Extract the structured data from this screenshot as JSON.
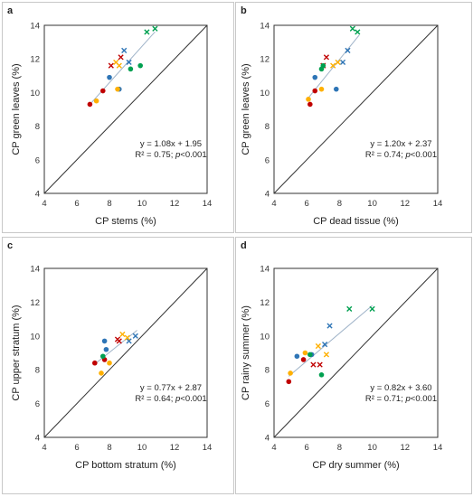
{
  "colors": {
    "red": "#c00000",
    "blue": "#2e75b6",
    "gold": "#ffb000",
    "green": "#00a050"
  },
  "chart_data": [
    {
      "type": "scatter",
      "panel": "a",
      "xlabel": "CP stems (%)",
      "ylabel": "CP green leaves (%)",
      "xlim": [
        4,
        14
      ],
      "ylim": [
        4,
        14
      ],
      "xticks": [
        "4",
        "6",
        "8",
        "10",
        "12",
        "14"
      ],
      "yticks": [
        "4",
        "6",
        "8",
        "10",
        "12",
        "14"
      ],
      "equation": "y = 1.08x + 1.95",
      "r2_text": "R² = 0.75; ",
      "p_label": "p",
      "p_text": "<0.001",
      "trendline": {
        "slope": 1.08,
        "intercept": 1.95,
        "x": [
          6.8,
          10.8
        ]
      },
      "series": [
        {
          "color": "red",
          "points": [
            {
              "x": 6.8,
              "y": 9.3,
              "m": "o"
            },
            {
              "x": 7.6,
              "y": 10.1,
              "m": "o"
            },
            {
              "x": 8.1,
              "y": 11.6,
              "m": "x"
            },
            {
              "x": 8.7,
              "y": 12.1,
              "m": "x"
            }
          ]
        },
        {
          "color": "blue",
          "points": [
            {
              "x": 8.0,
              "y": 10.9,
              "m": "o"
            },
            {
              "x": 8.6,
              "y": 10.2,
              "m": "o"
            },
            {
              "x": 8.9,
              "y": 12.5,
              "m": "x"
            },
            {
              "x": 9.2,
              "y": 11.8,
              "m": "x"
            }
          ]
        },
        {
          "color": "gold",
          "points": [
            {
              "x": 7.2,
              "y": 9.5,
              "m": "o"
            },
            {
              "x": 8.5,
              "y": 10.2,
              "m": "o"
            },
            {
              "x": 8.4,
              "y": 11.8,
              "m": "x"
            },
            {
              "x": 8.6,
              "y": 11.6,
              "m": "x"
            }
          ]
        },
        {
          "color": "green",
          "points": [
            {
              "x": 9.3,
              "y": 11.4,
              "m": "o"
            },
            {
              "x": 9.9,
              "y": 11.6,
              "m": "o"
            },
            {
              "x": 10.3,
              "y": 13.6,
              "m": "x"
            },
            {
              "x": 10.8,
              "y": 13.8,
              "m": "x"
            }
          ]
        }
      ]
    },
    {
      "type": "scatter",
      "panel": "b",
      "xlabel": "CP dead tissue (%)",
      "ylabel": "CP green leaves (%)",
      "xlim": [
        4,
        14
      ],
      "ylim": [
        4,
        14
      ],
      "xticks": [
        "4",
        "6",
        "8",
        "10",
        "12",
        "14"
      ],
      "yticks": [
        "4",
        "6",
        "8",
        "10",
        "12",
        "14"
      ],
      "equation": "y = 1.20x + 2.37",
      "r2_text": "R² = 0.74; ",
      "p_label": "p",
      "p_text": "<0.001",
      "trendline": {
        "slope": 1.2,
        "intercept": 2.37,
        "x": [
          6.0,
          9.2
        ]
      },
      "series": [
        {
          "color": "red",
          "points": [
            {
              "x": 6.2,
              "y": 9.3,
              "m": "o"
            },
            {
              "x": 6.5,
              "y": 10.1,
              "m": "o"
            },
            {
              "x": 7.2,
              "y": 12.1,
              "m": "x"
            },
            {
              "x": 7.0,
              "y": 11.6,
              "m": "x"
            }
          ]
        },
        {
          "color": "blue",
          "points": [
            {
              "x": 6.5,
              "y": 10.9,
              "m": "o"
            },
            {
              "x": 7.8,
              "y": 10.2,
              "m": "o"
            },
            {
              "x": 8.5,
              "y": 12.5,
              "m": "x"
            },
            {
              "x": 8.2,
              "y": 11.8,
              "m": "x"
            }
          ]
        },
        {
          "color": "gold",
          "points": [
            {
              "x": 6.1,
              "y": 9.6,
              "m": "o"
            },
            {
              "x": 6.9,
              "y": 10.2,
              "m": "o"
            },
            {
              "x": 7.6,
              "y": 11.6,
              "m": "x"
            },
            {
              "x": 7.9,
              "y": 11.8,
              "m": "x"
            }
          ]
        },
        {
          "color": "green",
          "points": [
            {
              "x": 6.9,
              "y": 11.4,
              "m": "o"
            },
            {
              "x": 7.0,
              "y": 11.6,
              "m": "o"
            },
            {
              "x": 8.8,
              "y": 13.8,
              "m": "x"
            },
            {
              "x": 9.1,
              "y": 13.6,
              "m": "x"
            }
          ]
        }
      ]
    },
    {
      "type": "scatter",
      "panel": "c",
      "xlabel": "CP bottom stratum (%)",
      "ylabel": "CP upper stratum (%)",
      "xlim": [
        4,
        14
      ],
      "ylim": [
        4,
        14
      ],
      "xticks": [
        "4",
        "6",
        "8",
        "10",
        "12",
        "14"
      ],
      "yticks": [
        "4",
        "6",
        "8",
        "10",
        "12",
        "14"
      ],
      "equation": "y = 0.77x + 2.87",
      "r2_text": "R² = 0.64; ",
      "p_label": "p",
      "p_text": "<0.001",
      "trendline": {
        "slope": 0.77,
        "intercept": 2.87,
        "x": [
          7.1,
          9.7
        ]
      },
      "series": [
        {
          "color": "red",
          "points": [
            {
              "x": 7.1,
              "y": 8.4,
              "m": "o"
            },
            {
              "x": 7.7,
              "y": 8.6,
              "m": "o"
            },
            {
              "x": 8.5,
              "y": 9.8,
              "m": "x"
            },
            {
              "x": 8.6,
              "y": 9.7,
              "m": "x"
            }
          ]
        },
        {
          "color": "blue",
          "points": [
            {
              "x": 7.8,
              "y": 9.2,
              "m": "o"
            },
            {
              "x": 7.7,
              "y": 9.7,
              "m": "o"
            },
            {
              "x": 9.2,
              "y": 9.7,
              "m": "x"
            },
            {
              "x": 9.6,
              "y": 10.0,
              "m": "x"
            }
          ]
        },
        {
          "color": "gold",
          "points": [
            {
              "x": 7.5,
              "y": 7.8,
              "m": "o"
            },
            {
              "x": 8.0,
              "y": 8.4,
              "m": "o"
            },
            {
              "x": 8.8,
              "y": 10.1,
              "m": "x"
            },
            {
              "x": 9.1,
              "y": 9.9,
              "m": "x"
            }
          ]
        },
        {
          "color": "green",
          "points": [
            {
              "x": 7.6,
              "y": 8.8,
              "m": "o"
            }
          ]
        }
      ]
    },
    {
      "type": "scatter",
      "panel": "d",
      "xlabel": "CP dry summer (%)",
      "ylabel": "CP rainy summer (%)",
      "xlim": [
        4,
        14
      ],
      "ylim": [
        4,
        14
      ],
      "xticks": [
        "4",
        "6",
        "8",
        "10",
        "12",
        "14"
      ],
      "yticks": [
        "4",
        "6",
        "8",
        "10",
        "12",
        "14"
      ],
      "equation": "y = 0.82x + 3.60",
      "r2_text": "R² = 0.71; ",
      "p_label": "p",
      "p_text": "<0.001",
      "trendline": {
        "slope": 0.82,
        "intercept": 3.6,
        "x": [
          4.9,
          10.0
        ]
      },
      "series": [
        {
          "color": "red",
          "points": [
            {
              "x": 4.9,
              "y": 7.3,
              "m": "o"
            },
            {
              "x": 5.8,
              "y": 8.6,
              "m": "o"
            },
            {
              "x": 6.4,
              "y": 8.3,
              "m": "x"
            },
            {
              "x": 6.8,
              "y": 8.3,
              "m": "x"
            }
          ]
        },
        {
          "color": "blue",
          "points": [
            {
              "x": 5.4,
              "y": 8.8,
              "m": "o"
            },
            {
              "x": 6.3,
              "y": 8.9,
              "m": "o"
            },
            {
              "x": 7.1,
              "y": 9.5,
              "m": "x"
            },
            {
              "x": 7.4,
              "y": 10.6,
              "m": "x"
            }
          ]
        },
        {
          "color": "gold",
          "points": [
            {
              "x": 5.0,
              "y": 7.8,
              "m": "o"
            },
            {
              "x": 5.9,
              "y": 9.0,
              "m": "o"
            },
            {
              "x": 6.7,
              "y": 9.4,
              "m": "x"
            },
            {
              "x": 7.2,
              "y": 8.9,
              "m": "x"
            }
          ]
        },
        {
          "color": "green",
          "points": [
            {
              "x": 6.2,
              "y": 8.9,
              "m": "o"
            },
            {
              "x": 6.9,
              "y": 7.7,
              "m": "o"
            },
            {
              "x": 8.6,
              "y": 11.6,
              "m": "x"
            },
            {
              "x": 10.0,
              "y": 11.6,
              "m": "x"
            }
          ]
        }
      ]
    }
  ]
}
